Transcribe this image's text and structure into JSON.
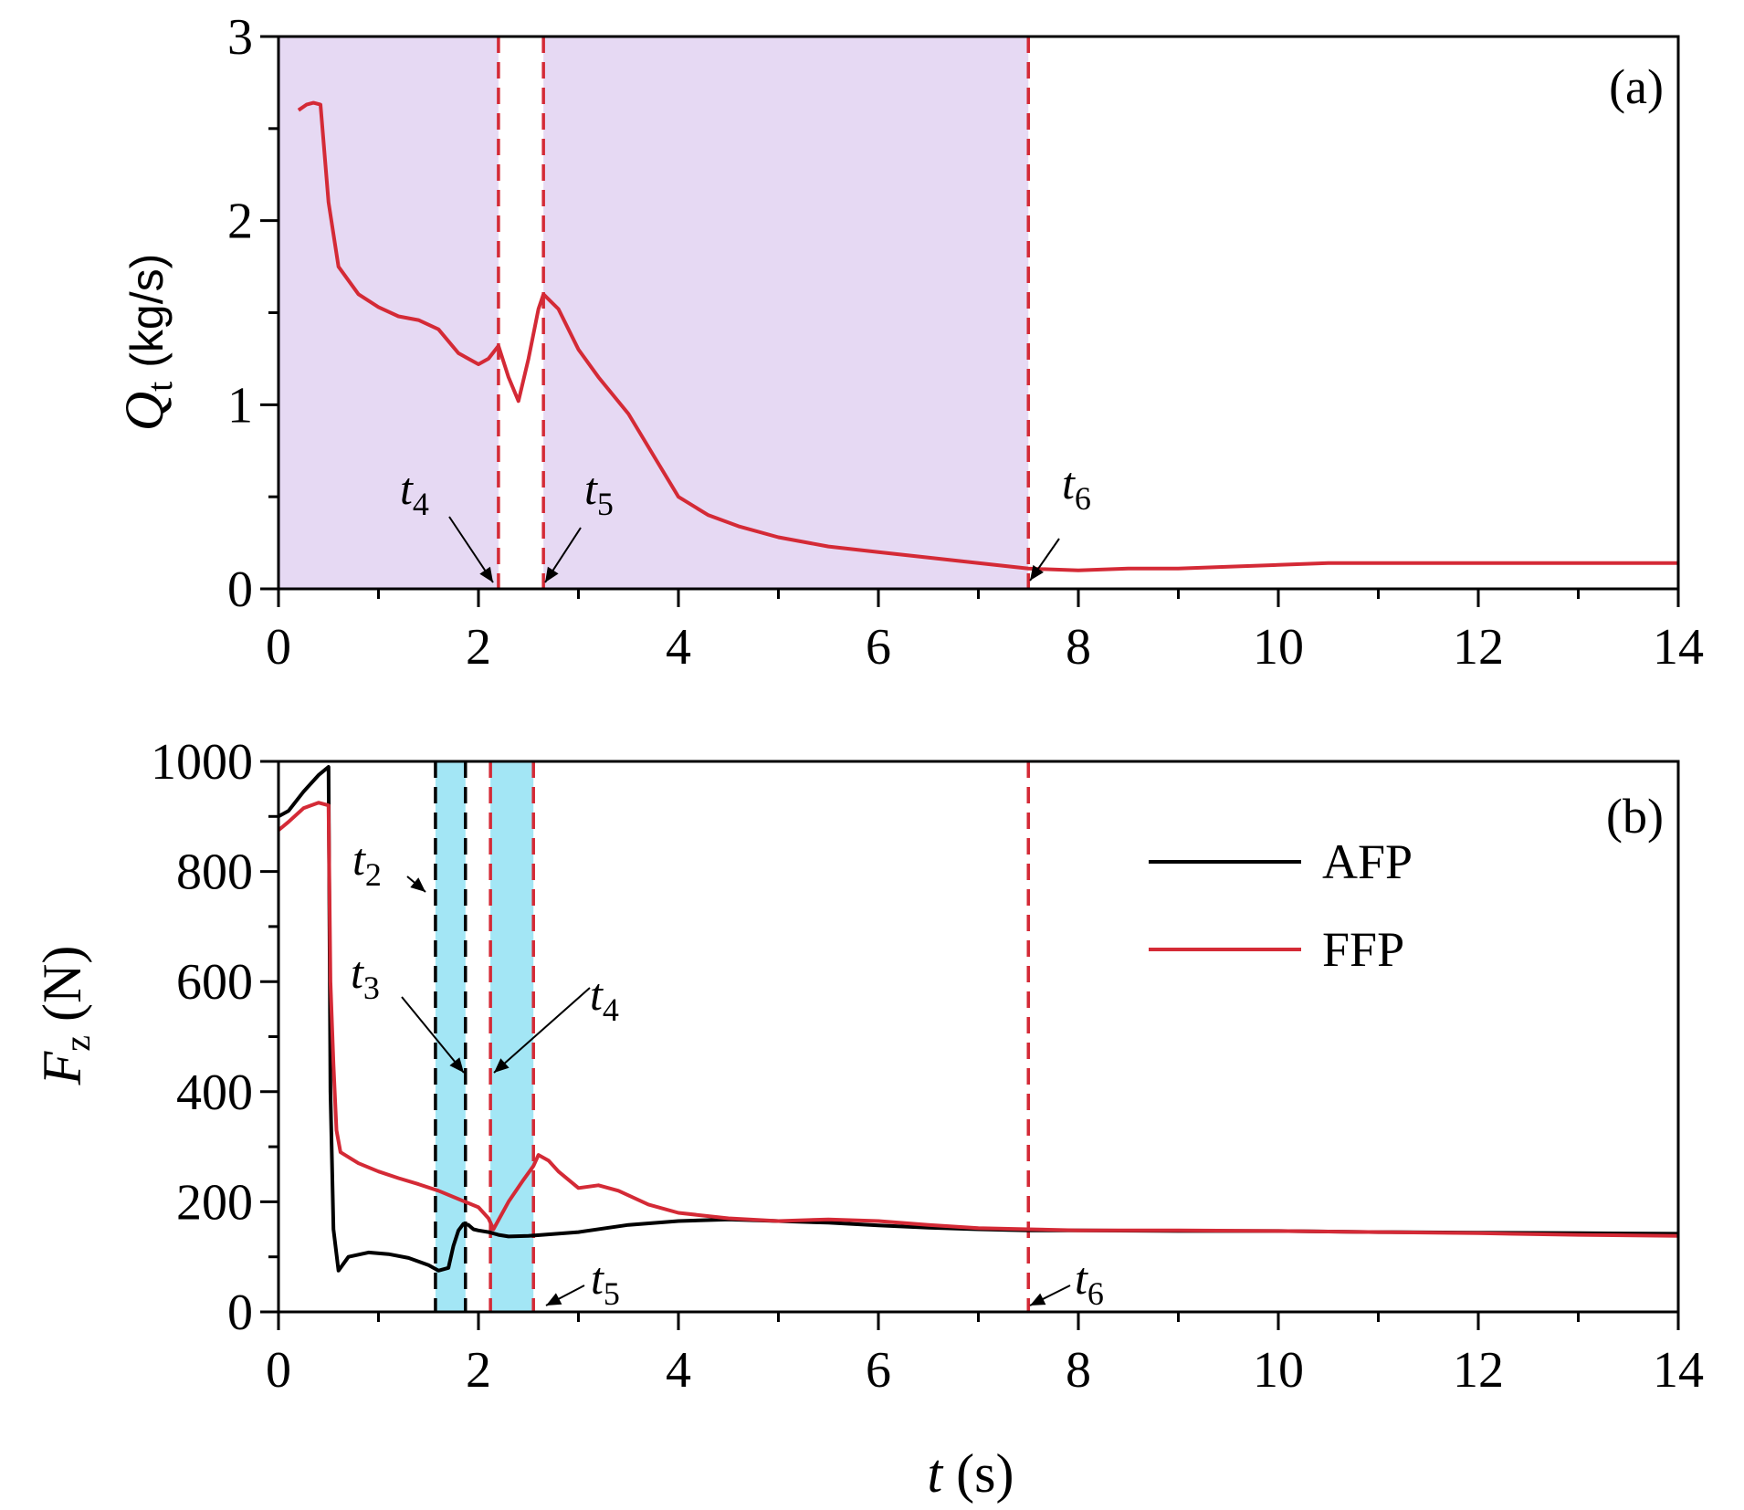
{
  "chart_data": [
    {
      "panel": "(a)",
      "type": "line",
      "xlabel_var": "t",
      "xlabel_unit": "(s)",
      "ylabel_var": "Q",
      "ylabel_sub": "t",
      "ylabel_unit": "(kg/s)",
      "xlim": [
        0,
        14
      ],
      "ylim": [
        0,
        3
      ],
      "xticks": [
        0,
        2,
        4,
        6,
        8,
        10,
        12,
        14
      ],
      "yticks": [
        0,
        1,
        2,
        3
      ],
      "colors": {
        "fill": "#e6d9f3",
        "series": "#d42a36",
        "marker_line": "#d42a36"
      },
      "shaded_regions": [
        {
          "from": 0,
          "to": 2.2,
          "color": "#e6d9f3"
        },
        {
          "from": 2.65,
          "to": 7.5,
          "color": "#e6d9f3"
        }
      ],
      "vlines": [
        {
          "x": 2.2,
          "color": "#d42a36"
        },
        {
          "x": 2.65,
          "color": "#d42a36"
        },
        {
          "x": 7.5,
          "color": "#d42a36"
        }
      ],
      "annotations": [
        {
          "label": "t",
          "sub": "4",
          "x": 2.1,
          "y": 0
        },
        {
          "label": "t",
          "sub": "5",
          "x": 2.65,
          "y": 0
        },
        {
          "label": "t",
          "sub": "6",
          "x": 7.5,
          "y": 0.04
        }
      ],
      "series": [
        {
          "name": "Q_t",
          "color": "#d42a36",
          "x": [
            0.2,
            0.28,
            0.35,
            0.42,
            0.5,
            0.6,
            0.8,
            1.0,
            1.2,
            1.4,
            1.6,
            1.8,
            2.0,
            2.1,
            2.2,
            2.3,
            2.4,
            2.5,
            2.6,
            2.65,
            2.8,
            3.0,
            3.2,
            3.5,
            3.8,
            4.0,
            4.3,
            4.6,
            5.0,
            5.5,
            6.0,
            6.5,
            7.0,
            7.5,
            8.0,
            8.5,
            9.0,
            9.5,
            10.0,
            10.5,
            11.0,
            11.5,
            12.0,
            12.5,
            13.0,
            13.5,
            14.0
          ],
          "values": [
            2.6,
            2.63,
            2.64,
            2.63,
            2.1,
            1.75,
            1.6,
            1.53,
            1.48,
            1.46,
            1.41,
            1.28,
            1.22,
            1.25,
            1.32,
            1.15,
            1.02,
            1.25,
            1.52,
            1.6,
            1.52,
            1.3,
            1.15,
            0.95,
            0.68,
            0.5,
            0.4,
            0.34,
            0.28,
            0.23,
            0.2,
            0.17,
            0.14,
            0.11,
            0.1,
            0.11,
            0.11,
            0.12,
            0.13,
            0.14,
            0.14,
            0.14,
            0.14,
            0.14,
            0.14,
            0.14,
            0.14
          ]
        }
      ]
    },
    {
      "panel": "(b)",
      "type": "line",
      "xlabel_var": "t",
      "xlabel_unit": "(s)",
      "ylabel_var": "F",
      "ylabel_sub": "z",
      "ylabel_unit": "(N)",
      "xlim": [
        0,
        14
      ],
      "ylim": [
        0,
        1000
      ],
      "xticks": [
        0,
        2,
        4,
        6,
        8,
        10,
        12,
        14
      ],
      "yticks": [
        0,
        200,
        400,
        600,
        800,
        1000
      ],
      "colors": {
        "fill": "#a3e6f5"
      },
      "shaded_regions": [
        {
          "from": 1.57,
          "to": 1.87,
          "color": "#a3e6f5"
        },
        {
          "from": 2.12,
          "to": 2.55,
          "color": "#a3e6f5"
        }
      ],
      "vlines": [
        {
          "x": 1.57,
          "color": "#000000"
        },
        {
          "x": 1.87,
          "color": "#000000"
        },
        {
          "x": 2.12,
          "color": "#d42a36"
        },
        {
          "x": 2.55,
          "color": "#d42a36"
        },
        {
          "x": 7.5,
          "color": "#d42a36"
        }
      ],
      "annotations": [
        {
          "label": "t",
          "sub": "2",
          "x": 1.55,
          "y": 770
        },
        {
          "label": "t",
          "sub": "3",
          "x": 1.85,
          "y": 430
        },
        {
          "label": "t",
          "sub": "4",
          "x": 2.12,
          "y": 430
        },
        {
          "label": "t",
          "sub": "5",
          "x": 2.58,
          "y": 5
        },
        {
          "label": "t",
          "sub": "6",
          "x": 7.52,
          "y": 5
        }
      ],
      "legend": {
        "position": "top-right",
        "entries": [
          "AFP",
          "FFP"
        ]
      },
      "series": [
        {
          "name": "AFP",
          "color": "#000000",
          "x": [
            0,
            0.1,
            0.25,
            0.4,
            0.5,
            0.52,
            0.55,
            0.6,
            0.7,
            0.9,
            1.1,
            1.3,
            1.5,
            1.6,
            1.7,
            1.75,
            1.8,
            1.85,
            1.9,
            1.95,
            2.0,
            2.1,
            2.2,
            2.3,
            2.5,
            3.0,
            3.5,
            4.0,
            4.5,
            5.0,
            5.5,
            6.0,
            6.5,
            7.0,
            7.5,
            8.0,
            9.0,
            10.0,
            11.0,
            12.0,
            13.0,
            14.0
          ],
          "values": [
            900,
            910,
            945,
            975,
            990,
            400,
            150,
            75,
            100,
            108,
            105,
            98,
            85,
            75,
            80,
            120,
            148,
            160,
            158,
            150,
            148,
            145,
            140,
            137,
            138,
            145,
            158,
            165,
            168,
            165,
            162,
            157,
            153,
            150,
            148,
            148,
            147,
            147,
            145,
            144,
            143,
            142
          ]
        },
        {
          "name": "FFP",
          "color": "#d42a36",
          "x": [
            0,
            0.1,
            0.25,
            0.4,
            0.5,
            0.52,
            0.55,
            0.58,
            0.62,
            0.8,
            1.0,
            1.2,
            1.4,
            1.6,
            1.8,
            2.0,
            2.1,
            2.15,
            2.3,
            2.45,
            2.55,
            2.6,
            2.7,
            2.8,
            3.0,
            3.2,
            3.4,
            3.7,
            4.0,
            4.5,
            5.0,
            5.5,
            6.0,
            6.5,
            7.0,
            7.5,
            8.0,
            9.0,
            10.0,
            11.0,
            12.0,
            13.0,
            14.0
          ],
          "values": [
            875,
            890,
            915,
            925,
            920,
            600,
            450,
            330,
            290,
            270,
            255,
            243,
            232,
            220,
            205,
            190,
            170,
            150,
            200,
            240,
            265,
            285,
            275,
            255,
            225,
            230,
            220,
            195,
            180,
            170,
            165,
            168,
            165,
            158,
            152,
            150,
            148,
            148,
            147,
            145,
            143,
            140,
            138
          ]
        }
      ]
    }
  ]
}
